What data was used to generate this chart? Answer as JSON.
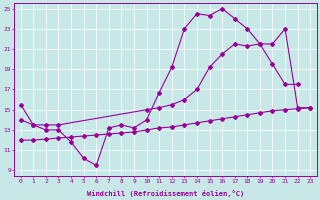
{
  "xlabel": "Windchill (Refroidissement éolien,°C)",
  "bg_color": "#c8e8e8",
  "line_color": "#990099",
  "xlim": [
    -0.5,
    23.5
  ],
  "ylim": [
    8.5,
    25.5
  ],
  "yticks": [
    9,
    11,
    13,
    15,
    17,
    19,
    21,
    23,
    25
  ],
  "xticks": [
    0,
    1,
    2,
    3,
    4,
    5,
    6,
    7,
    8,
    9,
    10,
    11,
    12,
    13,
    14,
    15,
    16,
    17,
    18,
    19,
    20,
    21,
    22,
    23
  ],
  "line1_x": [
    0,
    1,
    2,
    3,
    4,
    5,
    6,
    7,
    8,
    9,
    10,
    11,
    12,
    13,
    14,
    15,
    16,
    17,
    18,
    19,
    20,
    21,
    22
  ],
  "line1_y": [
    15.5,
    13.5,
    13.0,
    13.0,
    11.8,
    10.2,
    9.5,
    13.2,
    13.5,
    13.2,
    14.0,
    16.7,
    19.2,
    23.0,
    24.5,
    24.3,
    25.0,
    24.0,
    23.0,
    21.5,
    19.5,
    17.5,
    17.5
  ],
  "line2_x": [
    0,
    1,
    2,
    3,
    10,
    11,
    12,
    13,
    14,
    15,
    16,
    17,
    18,
    19,
    20,
    21,
    22,
    23
  ],
  "line2_y": [
    14.0,
    13.5,
    13.5,
    13.5,
    15.0,
    15.2,
    15.5,
    16.0,
    17.0,
    19.2,
    20.5,
    21.5,
    21.3,
    21.5,
    21.5,
    23.0,
    15.2,
    15.2
  ],
  "line3_x": [
    0,
    1,
    2,
    3,
    4,
    5,
    6,
    7,
    8,
    9,
    10,
    11,
    12,
    13,
    14,
    15,
    16,
    17,
    18,
    19,
    20,
    21,
    22,
    23
  ],
  "line3_y": [
    12.0,
    12.0,
    12.1,
    12.2,
    12.3,
    12.4,
    12.5,
    12.6,
    12.7,
    12.8,
    13.0,
    13.2,
    13.3,
    13.5,
    13.7,
    13.9,
    14.1,
    14.3,
    14.5,
    14.7,
    14.9,
    15.0,
    15.1,
    15.2
  ]
}
